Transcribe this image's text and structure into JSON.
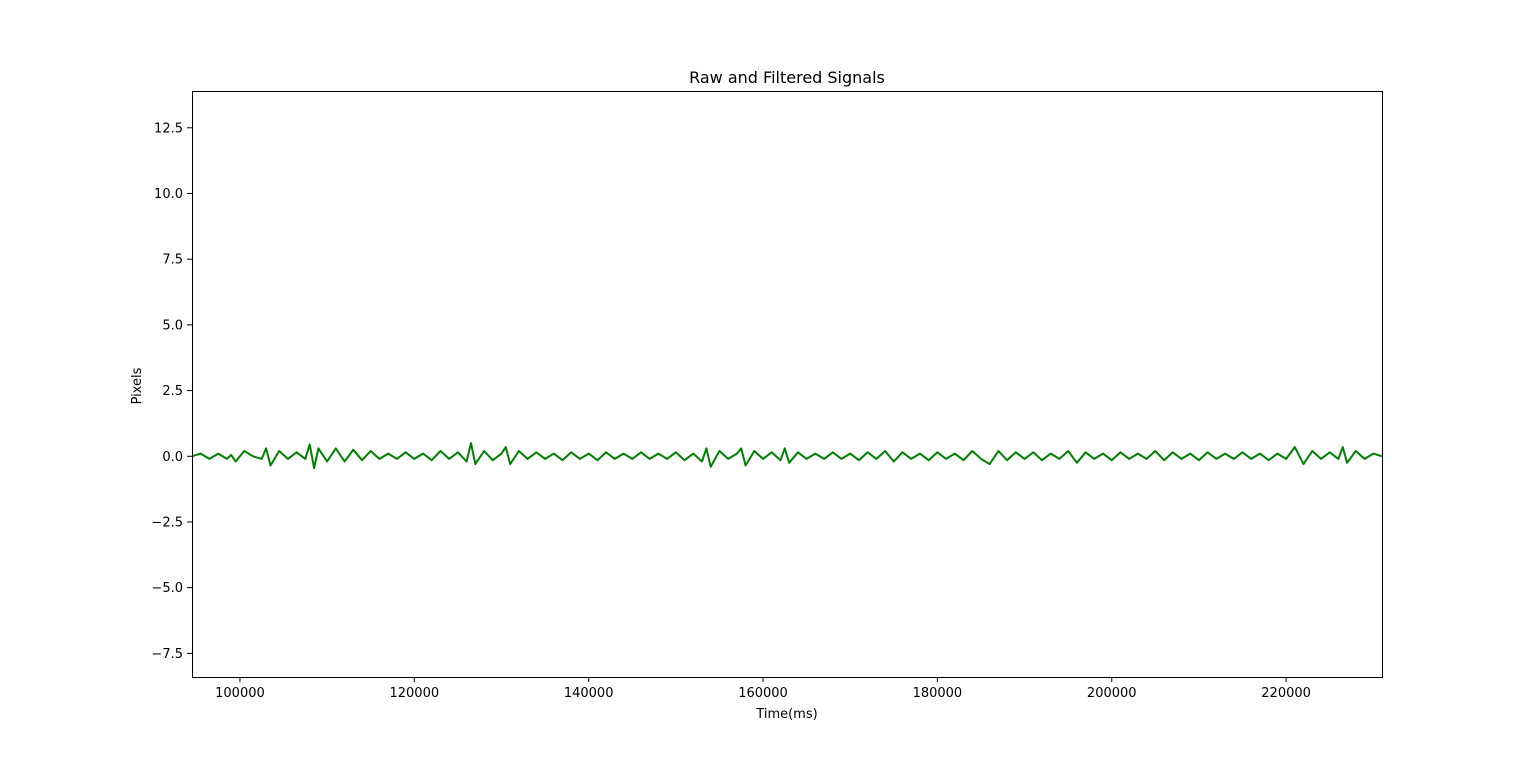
{
  "chart_data": {
    "type": "line",
    "title": "Raw and Filtered Signals",
    "xlabel": "Time(ms)",
    "ylabel": "Pixels",
    "xlim": [
      94500,
      231000
    ],
    "ylim": [
      -8.4,
      13.9
    ],
    "xticks": [
      100000,
      120000,
      140000,
      160000,
      180000,
      200000,
      220000
    ],
    "xtick_labels": [
      "100000",
      "120000",
      "140000",
      "160000",
      "180000",
      "200000",
      "220000"
    ],
    "yticks": [
      -7.5,
      -5.0,
      -2.5,
      0.0,
      2.5,
      5.0,
      7.5,
      10.0,
      12.5
    ],
    "ytick_labels": [
      "−7.5",
      "−5.0",
      "−2.5",
      "0.0",
      "2.5",
      "5.0",
      "7.5",
      "10.0",
      "12.5"
    ],
    "grid": false,
    "series": [
      {
        "color": "#008000",
        "x": [
          94500,
          95500,
          96500,
          97500,
          98500,
          99000,
          99500,
          100500,
          101500,
          102500,
          103000,
          103500,
          104500,
          105500,
          106500,
          107500,
          108000,
          108500,
          109000,
          110000,
          111000,
          112000,
          113000,
          114000,
          115000,
          116000,
          117000,
          118000,
          119000,
          120000,
          121000,
          122000,
          123000,
          124000,
          125000,
          126000,
          126500,
          127000,
          128000,
          129000,
          130000,
          130500,
          131000,
          132000,
          133000,
          134000,
          135000,
          136000,
          137000,
          138000,
          139000,
          140000,
          141000,
          142000,
          143000,
          144000,
          145000,
          146000,
          147000,
          148000,
          149000,
          150000,
          151000,
          152000,
          153000,
          153500,
          154000,
          155000,
          156000,
          157000,
          157500,
          158000,
          159000,
          160000,
          161000,
          162000,
          162500,
          163000,
          164000,
          165000,
          166000,
          167000,
          168000,
          169000,
          170000,
          171000,
          172000,
          173000,
          174000,
          175000,
          176000,
          177000,
          178000,
          179000,
          180000,
          181000,
          182000,
          183000,
          184000,
          185000,
          186000,
          187000,
          188000,
          189000,
          190000,
          191000,
          192000,
          193000,
          194000,
          195000,
          196000,
          197000,
          198000,
          199000,
          200000,
          201000,
          202000,
          203000,
          204000,
          205000,
          206000,
          207000,
          208000,
          209000,
          210000,
          211000,
          212000,
          213000,
          214000,
          215000,
          216000,
          217000,
          218000,
          219000,
          220000,
          221000,
          222000,
          223000,
          224000,
          225000,
          226000,
          226500,
          227000,
          228000,
          229000,
          230000,
          231000
        ],
        "y": [
          0.0,
          0.1,
          -0.1,
          0.1,
          -0.1,
          0.05,
          -0.2,
          0.2,
          0.0,
          -0.1,
          0.3,
          -0.35,
          0.2,
          -0.1,
          0.15,
          -0.1,
          0.45,
          -0.45,
          0.3,
          -0.2,
          0.3,
          -0.2,
          0.25,
          -0.15,
          0.2,
          -0.1,
          0.1,
          -0.1,
          0.15,
          -0.1,
          0.1,
          -0.15,
          0.2,
          -0.1,
          0.15,
          -0.2,
          0.5,
          -0.3,
          0.2,
          -0.15,
          0.1,
          0.35,
          -0.3,
          0.2,
          -0.1,
          0.15,
          -0.1,
          0.1,
          -0.15,
          0.15,
          -0.1,
          0.1,
          -0.15,
          0.15,
          -0.1,
          0.1,
          -0.1,
          0.15,
          -0.1,
          0.1,
          -0.1,
          0.15,
          -0.15,
          0.1,
          -0.2,
          0.3,
          -0.4,
          0.2,
          -0.1,
          0.1,
          0.3,
          -0.35,
          0.2,
          -0.1,
          0.15,
          -0.15,
          0.3,
          -0.25,
          0.15,
          -0.1,
          0.1,
          -0.1,
          0.15,
          -0.1,
          0.1,
          -0.15,
          0.15,
          -0.1,
          0.2,
          -0.2,
          0.15,
          -0.1,
          0.1,
          -0.15,
          0.15,
          -0.1,
          0.1,
          -0.15,
          0.2,
          -0.1,
          -0.3,
          0.2,
          -0.15,
          0.15,
          -0.1,
          0.15,
          -0.15,
          0.1,
          -0.1,
          0.2,
          -0.25,
          0.15,
          -0.1,
          0.1,
          -0.15,
          0.15,
          -0.1,
          0.1,
          -0.1,
          0.2,
          -0.15,
          0.15,
          -0.1,
          0.1,
          -0.15,
          0.15,
          -0.1,
          0.1,
          -0.1,
          0.15,
          -0.1,
          0.1,
          -0.15,
          0.1,
          -0.1,
          0.35,
          -0.3,
          0.2,
          -0.1,
          0.15,
          -0.1,
          0.35,
          -0.25,
          0.2,
          -0.1,
          0.1,
          0.0
        ]
      }
    ]
  }
}
